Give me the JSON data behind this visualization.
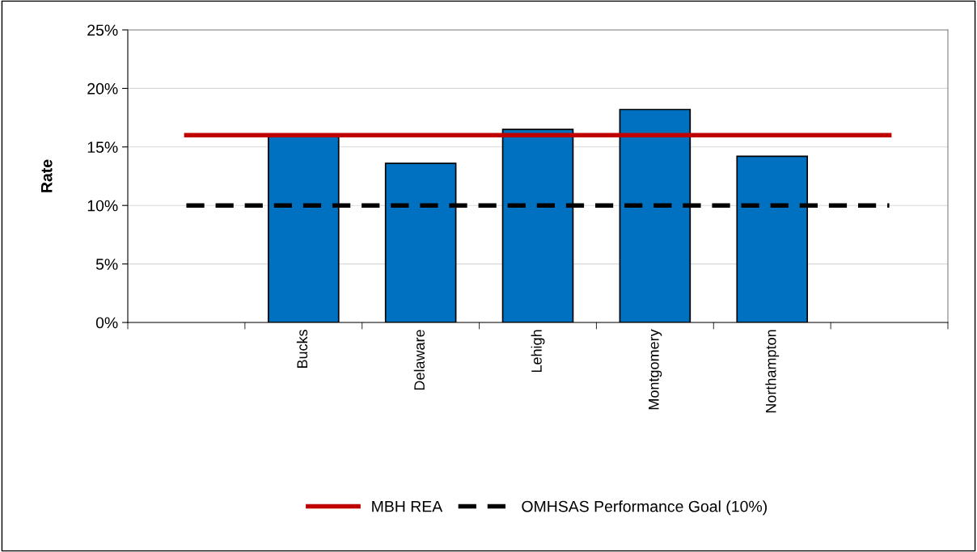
{
  "chart_data": {
    "type": "bar",
    "ylabel": "Rate",
    "categories": [
      null,
      "Bucks",
      "Delaware",
      "Lehigh",
      "Montgomery",
      "Northampton",
      null
    ],
    "series": [
      {
        "color": "#0070c0",
        "values": [
          null,
          16.0,
          13.6,
          16.5,
          18.2,
          14.2,
          null
        ]
      },
      {
        "type": "line",
        "name": "MBH REA",
        "color": "#c00000",
        "line_style": "solid",
        "values": [
          16.0,
          16.0,
          16.0,
          16.0,
          16.0,
          16.0,
          16.0
        ]
      },
      {
        "type": "line",
        "name": "OMHSAS Performance Goal (10%)",
        "color": "#000000",
        "line_style": "dashed",
        "values": [
          10,
          10,
          10,
          10,
          10,
          10,
          10
        ]
      }
    ],
    "ylim": [
      0,
      25
    ],
    "yticks": [
      {
        "value": 0,
        "label": "0%"
      },
      {
        "value": 5,
        "label": "5%"
      },
      {
        "value": 10,
        "label": "10%"
      },
      {
        "value": 15,
        "label": "15%"
      },
      {
        "value": 20,
        "label": "20%"
      },
      {
        "value": 25,
        "label": "25%"
      }
    ],
    "grid": "y",
    "legend": "bottom",
    "marker": "none"
  }
}
